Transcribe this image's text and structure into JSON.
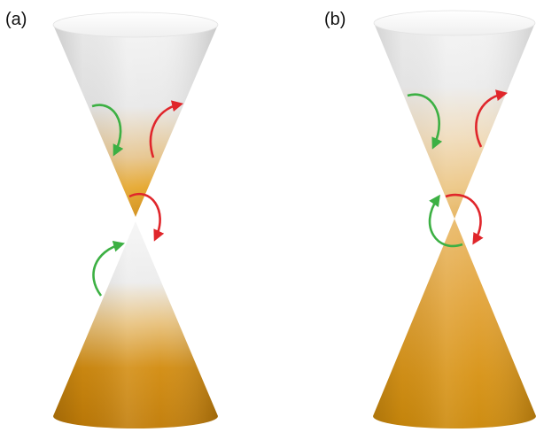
{
  "panels": [
    {
      "label": "(a)"
    },
    {
      "label": "(b)"
    }
  ],
  "colors": {
    "cone_light": "#f2f2f2",
    "cone_orange": "#e09a17",
    "cone_dark": "#8a5205",
    "arrow_green": "#3cb043",
    "arrow_red": "#e0262b"
  }
}
